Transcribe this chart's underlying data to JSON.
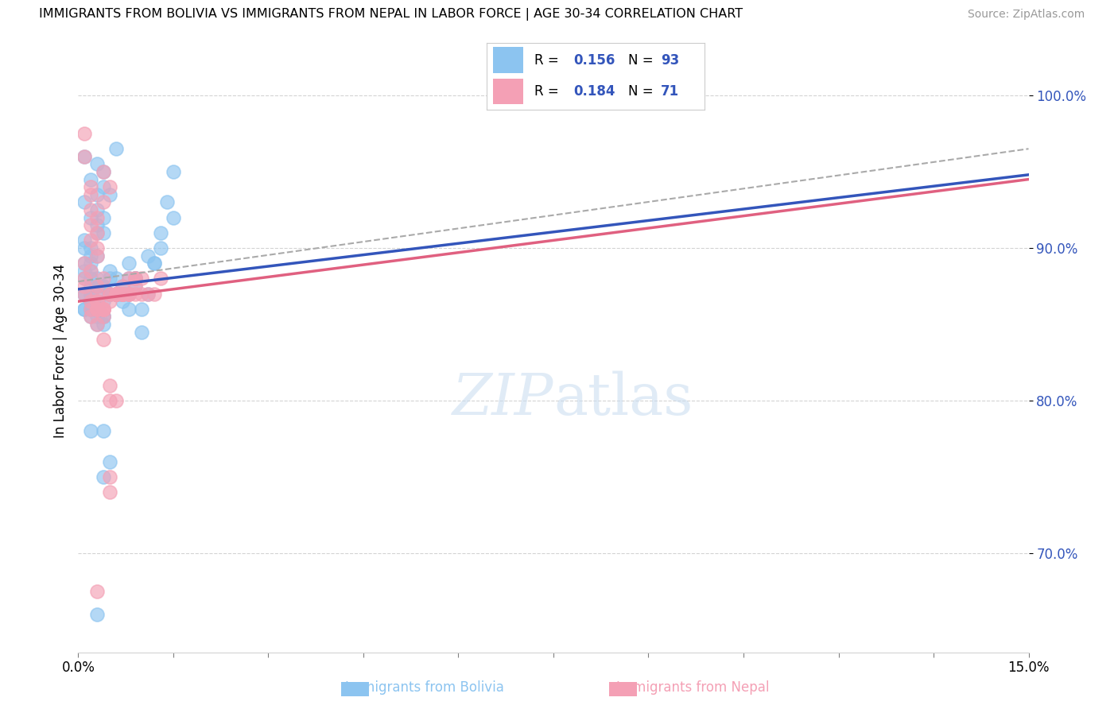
{
  "title": "IMMIGRANTS FROM BOLIVIA VS IMMIGRANTS FROM NEPAL IN LABOR FORCE | AGE 30-34 CORRELATION CHART",
  "source": "Source: ZipAtlas.com",
  "xlabel_label": "Immigrants from Bolivia",
  "xlabel2_label": "Immigrants from Nepal",
  "ylabel": "In Labor Force | Age 30-34",
  "xlim": [
    0.0,
    0.15
  ],
  "ylim": [
    0.635,
    1.03
  ],
  "yticks": [
    0.7,
    0.8,
    0.9,
    1.0
  ],
  "ytick_labels": [
    "70.0%",
    "80.0%",
    "90.0%",
    "100.0%"
  ],
  "xtick_labels": [
    "0.0%",
    "15.0%"
  ],
  "legend_r1": "0.156",
  "legend_n1": "93",
  "legend_r2": "0.184",
  "legend_n2": "71",
  "color_bolivia": "#8CC4F0",
  "color_nepal": "#F4A0B5",
  "color_blue_line": "#3355BB",
  "color_pink_line": "#E06080",
  "color_dashed_line": "#AAAAAA",
  "bolivia_x": [
    0.001,
    0.002,
    0.001,
    0.003,
    0.002,
    0.004,
    0.005,
    0.003,
    0.006,
    0.004,
    0.002,
    0.001,
    0.003,
    0.002,
    0.001,
    0.003,
    0.002,
    0.004,
    0.003,
    0.001,
    0.002,
    0.003,
    0.001,
    0.002,
    0.004,
    0.003,
    0.005,
    0.002,
    0.001,
    0.003,
    0.002,
    0.001,
    0.004,
    0.003,
    0.002,
    0.005,
    0.003,
    0.004,
    0.002,
    0.001,
    0.003,
    0.002,
    0.004,
    0.003,
    0.001,
    0.002,
    0.003,
    0.004,
    0.002,
    0.001,
    0.003,
    0.005,
    0.002,
    0.007,
    0.004,
    0.003,
    0.006,
    0.008,
    0.004,
    0.005,
    0.007,
    0.009,
    0.006,
    0.01,
    0.008,
    0.005,
    0.012,
    0.007,
    0.004,
    0.009,
    0.011,
    0.006,
    0.013,
    0.008,
    0.015,
    0.01,
    0.014,
    0.007,
    0.003,
    0.009,
    0.002,
    0.006,
    0.004,
    0.008,
    0.011,
    0.005,
    0.013,
    0.009,
    0.015,
    0.007,
    0.012,
    0.006,
    0.004
  ],
  "bolivia_y": [
    0.96,
    0.945,
    0.93,
    0.955,
    0.92,
    0.95,
    0.935,
    0.91,
    0.965,
    0.94,
    0.895,
    0.87,
    0.925,
    0.9,
    0.885,
    0.915,
    0.89,
    0.92,
    0.875,
    0.905,
    0.865,
    0.935,
    0.88,
    0.86,
    0.91,
    0.895,
    0.87,
    0.885,
    0.9,
    0.875,
    0.855,
    0.89,
    0.875,
    0.86,
    0.87,
    0.885,
    0.865,
    0.855,
    0.88,
    0.87,
    0.86,
    0.875,
    0.865,
    0.85,
    0.86,
    0.865,
    0.855,
    0.875,
    0.87,
    0.86,
    0.88,
    0.87,
    0.86,
    0.875,
    0.855,
    0.86,
    0.87,
    0.86,
    0.85,
    0.88,
    0.865,
    0.875,
    0.88,
    0.86,
    0.87,
    0.76,
    0.89,
    0.87,
    0.78,
    0.88,
    0.895,
    0.87,
    0.91,
    0.88,
    0.95,
    0.845,
    0.93,
    0.87,
    0.66,
    0.88,
    0.78,
    0.87,
    0.75,
    0.89,
    0.87,
    0.87,
    0.9,
    0.88,
    0.92,
    0.87,
    0.89,
    0.87,
    0.87
  ],
  "nepal_x": [
    0.001,
    0.002,
    0.003,
    0.001,
    0.002,
    0.003,
    0.004,
    0.002,
    0.003,
    0.001,
    0.002,
    0.003,
    0.001,
    0.002,
    0.003,
    0.004,
    0.002,
    0.003,
    0.005,
    0.001,
    0.002,
    0.003,
    0.001,
    0.002,
    0.004,
    0.003,
    0.005,
    0.002,
    0.006,
    0.003,
    0.007,
    0.004,
    0.008,
    0.003,
    0.005,
    0.009,
    0.006,
    0.004,
    0.01,
    0.007,
    0.005,
    0.011,
    0.008,
    0.006,
    0.012,
    0.009,
    0.007,
    0.013,
    0.005,
    0.009,
    0.003,
    0.006,
    0.004,
    0.007,
    0.005,
    0.008,
    0.004,
    0.006,
    0.01,
    0.007,
    0.005,
    0.008,
    0.003,
    0.006,
    0.004,
    0.007,
    0.005,
    0.009,
    0.006,
    0.004,
    0.003
  ],
  "nepal_y": [
    0.975,
    0.94,
    0.92,
    0.96,
    0.935,
    0.91,
    0.95,
    0.925,
    0.9,
    0.89,
    0.915,
    0.895,
    0.88,
    0.905,
    0.87,
    0.93,
    0.885,
    0.86,
    0.94,
    0.875,
    0.865,
    0.875,
    0.87,
    0.86,
    0.88,
    0.865,
    0.87,
    0.855,
    0.87,
    0.865,
    0.875,
    0.855,
    0.87,
    0.86,
    0.75,
    0.88,
    0.87,
    0.84,
    0.87,
    0.87,
    0.8,
    0.87,
    0.87,
    0.8,
    0.87,
    0.88,
    0.87,
    0.88,
    0.74,
    0.875,
    0.86,
    0.87,
    0.86,
    0.87,
    0.865,
    0.88,
    0.86,
    0.87,
    0.88,
    0.87,
    0.81,
    0.87,
    0.85,
    0.87,
    0.86,
    0.87,
    0.87,
    0.87,
    0.87,
    0.86,
    0.675
  ]
}
